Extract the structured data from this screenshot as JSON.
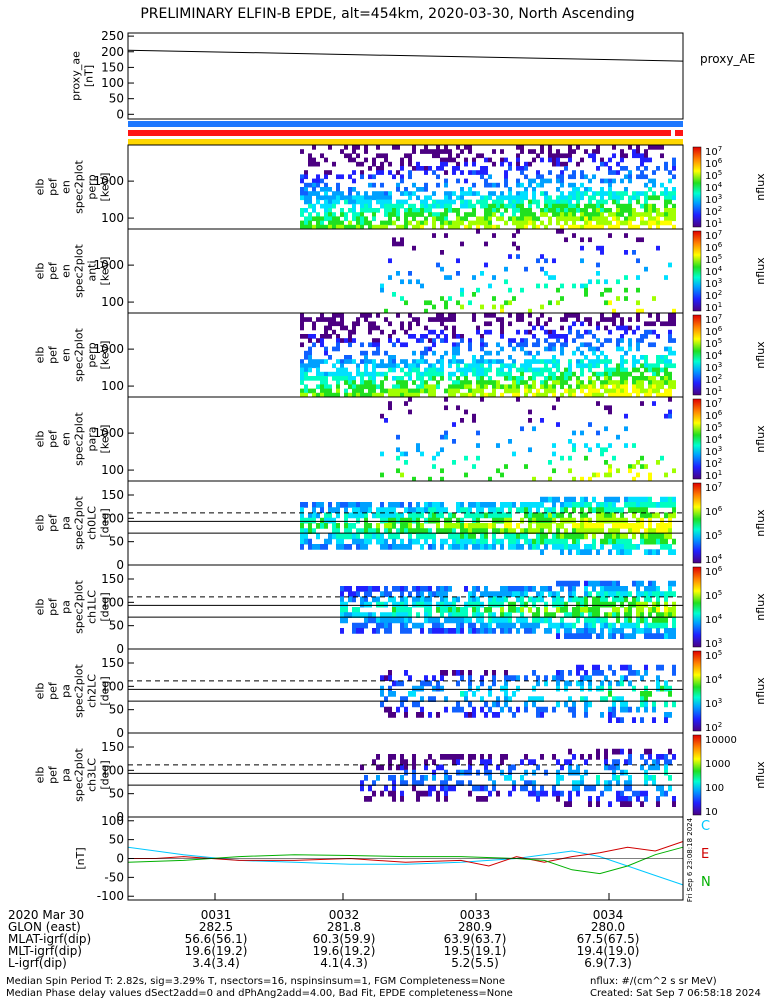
{
  "title": "PRELIMINARY ELFIN-B EPDE, alt=454km, 2020-03-30, North Ascending",
  "chart_data": [
    {
      "type": "line",
      "panel": "proxy_ae",
      "ylabel": "proxy_ae\n[nT]",
      "side_label": "proxy_AE",
      "yticks": [
        "250",
        "200",
        "150",
        "100",
        "50",
        "0"
      ],
      "ylim": [
        -15,
        260
      ],
      "x": [
        0,
        1
      ],
      "values": [
        205,
        170
      ]
    },
    {
      "type": "heatmap",
      "panel": "en_perp",
      "ylabel": "elb\npef\nen\nspec2plot\nperp\n[keV]",
      "yticks": [
        "1000",
        "100"
      ],
      "cbar": "nflux",
      "cbar_ticks": [
        "10^7",
        "10^6",
        "10^5",
        "10^4",
        "10^3",
        "10^2",
        "10^1"
      ]
    },
    {
      "type": "heatmap",
      "panel": "en_anti",
      "ylabel": "elb\npef\nen\nspec2plot\nanti\n[keV]",
      "yticks": [
        "1000",
        "100"
      ],
      "cbar": "nflux",
      "cbar_ticks": [
        "10^7",
        "10^6",
        "10^5",
        "10^4",
        "10^3",
        "10^2",
        "10^1"
      ]
    },
    {
      "type": "heatmap",
      "panel": "en_perp2",
      "ylabel": "elb\npef\nen\nspec2plot\nperp\n[keV]",
      "yticks": [
        "1000",
        "100"
      ],
      "cbar": "nflux",
      "cbar_ticks": [
        "10^7",
        "10^6",
        "10^5",
        "10^4",
        "10^3",
        "10^2",
        "10^1"
      ]
    },
    {
      "type": "heatmap",
      "panel": "en_para",
      "ylabel": "elb\npef\nen\nspec2plot\npara\n[keV]",
      "yticks": [
        "1000",
        "100"
      ],
      "cbar": "nflux",
      "cbar_ticks": [
        "10^7",
        "10^6",
        "10^5",
        "10^4",
        "10^3",
        "10^2",
        "10^1"
      ]
    },
    {
      "type": "heatmap",
      "panel": "pa_ch0",
      "ylabel": "elb\npef\npa\nspec2plot\nch0LC\n[deg]",
      "yticks": [
        "150",
        "100",
        "50",
        "0"
      ],
      "cbar": "nflux",
      "cbar_ticks": [
        "10^7",
        "10^6",
        "10^5",
        "10^4"
      ]
    },
    {
      "type": "heatmap",
      "panel": "pa_ch1",
      "ylabel": "elb\npef\npa\nspec2plot\nch1LC\n[deg]",
      "yticks": [
        "150",
        "100",
        "50",
        "0"
      ],
      "cbar": "nflux",
      "cbar_ticks": [
        "10^6",
        "10^5",
        "10^4",
        "10^3"
      ]
    },
    {
      "type": "heatmap",
      "panel": "pa_ch2",
      "ylabel": "elb\npef\npa\nspec2plot\nch2LC\n[deg]",
      "yticks": [
        "150",
        "100",
        "50",
        "0"
      ],
      "cbar": "nflux",
      "cbar_ticks": [
        "10^5",
        "10^4",
        "10^3",
        "10^2"
      ]
    },
    {
      "type": "heatmap",
      "panel": "pa_ch3",
      "ylabel": "elb\npef\npa\nspec2plot\nch3LC\n[deg]",
      "yticks": [
        "150",
        "100",
        "50",
        "0"
      ],
      "cbar": "nflux",
      "cbar_ticks": [
        "10000",
        "1000",
        "100",
        "10"
      ]
    },
    {
      "type": "line",
      "panel": "fgm",
      "ylabel": "[nT]",
      "yticks": [
        "100",
        "50",
        "0",
        "-50",
        "-100"
      ],
      "ylim": [
        -110,
        110
      ],
      "series": [
        {
          "name": "C",
          "color": "#00c8ff",
          "x": [
            0,
            0.05,
            0.1,
            0.2,
            0.3,
            0.4,
            0.5,
            0.6,
            0.7,
            0.8,
            0.85,
            0.9,
            0.95,
            1.0
          ],
          "values": [
            30,
            20,
            10,
            -5,
            -10,
            -15,
            -15,
            -10,
            0,
            20,
            5,
            -20,
            -45,
            -70
          ]
        },
        {
          "name": "E",
          "color": "#d00000",
          "x": [
            0,
            0.05,
            0.1,
            0.2,
            0.3,
            0.4,
            0.5,
            0.6,
            0.65,
            0.7,
            0.75,
            0.8,
            0.85,
            0.9,
            0.95,
            1.0
          ],
          "values": [
            0,
            0,
            5,
            -5,
            -5,
            0,
            -10,
            -5,
            -20,
            5,
            -10,
            5,
            15,
            30,
            20,
            45
          ]
        },
        {
          "name": "N",
          "color": "#00b000",
          "x": [
            0,
            0.1,
            0.2,
            0.3,
            0.4,
            0.5,
            0.6,
            0.7,
            0.75,
            0.8,
            0.85,
            0.9,
            0.95,
            1.0
          ],
          "values": [
            -10,
            -5,
            5,
            10,
            8,
            5,
            5,
            0,
            -5,
            -30,
            -40,
            -20,
            10,
            30
          ]
        }
      ]
    }
  ],
  "status_bar_colors": [
    "#1e78ff",
    "#ff1414",
    "#ffd700"
  ],
  "time_axis": {
    "row_labels": [
      "2020 Mar 30",
      "GLON (east)",
      "MLAT-igrf(dip)",
      "MLT-igrf(dip)",
      "L-igrf(dip)"
    ],
    "columns": [
      {
        "time": "0031",
        "glon": "282.5",
        "mlat": "56.6(56.1)",
        "mlt": "19.6(19.2)",
        "l": "3.4(3.4)"
      },
      {
        "time": "0032",
        "glon": "281.8",
        "mlat": "60.3(59.9)",
        "mlt": "19.6(19.2)",
        "l": "4.1(4.3)"
      },
      {
        "time": "0033",
        "glon": "280.9",
        "mlat": "63.9(63.7)",
        "mlt": "19.5(19.1)",
        "l": "5.2(5.5)"
      },
      {
        "time": "0034",
        "glon": "280.0",
        "mlat": "67.5(67.5)",
        "mlt": "19.4(19.0)",
        "l": "6.9(7.3)"
      }
    ]
  },
  "footer": {
    "line1": "Median Spin Period T: 2.82s, sig=3.29% T, nsectors=16, nspinsinsum=1, FGM Completeness=None",
    "line2": "Median Phase delay values dSect2add=0 and dPhAng2add=4.00, Bad Fit, EPDE completeness=None",
    "units": "nflux: #/(cm^2 s sr MeV)",
    "created": "Created: Sat Sep  7 06:58:18 2024",
    "stamp": "Fri Sep  6 23:08:18 2024"
  }
}
